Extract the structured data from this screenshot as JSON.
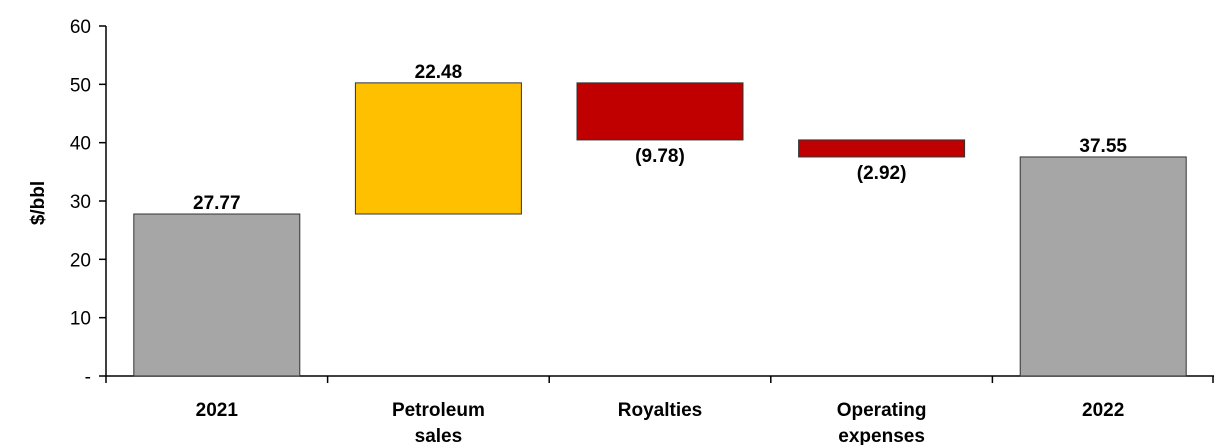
{
  "chart_data": {
    "type": "bar",
    "subtype": "waterfall",
    "title": "",
    "xlabel": "",
    "ylabel": "$/bbl",
    "ylim": [
      0,
      60
    ],
    "y_ticks": [
      {
        "value": 0,
        "label": "-"
      },
      {
        "value": 10,
        "label": "10"
      },
      {
        "value": 20,
        "label": "20"
      },
      {
        "value": 30,
        "label": "30"
      },
      {
        "value": 40,
        "label": "40"
      },
      {
        "value": 50,
        "label": "50"
      },
      {
        "value": 60,
        "label": "60"
      }
    ],
    "grid": false,
    "legend": "none",
    "categories": [
      [
        "2021"
      ],
      [
        "Petroleum",
        "sales"
      ],
      [
        "Royalties"
      ],
      [
        "Operating",
        "expenses"
      ],
      [
        "2022"
      ]
    ],
    "values": [
      27.77,
      22.48,
      -9.78,
      -2.92,
      37.55
    ],
    "kinds": [
      "total",
      "increase",
      "decrease",
      "decrease",
      "total"
    ],
    "data_labels": [
      "27.77",
      "22.48",
      "(9.78)",
      "(2.92)",
      "37.55"
    ],
    "colors": {
      "total": "#a6a6a6",
      "increase": "#ffc000",
      "decrease": "#c00000",
      "edge": "#333333"
    }
  }
}
